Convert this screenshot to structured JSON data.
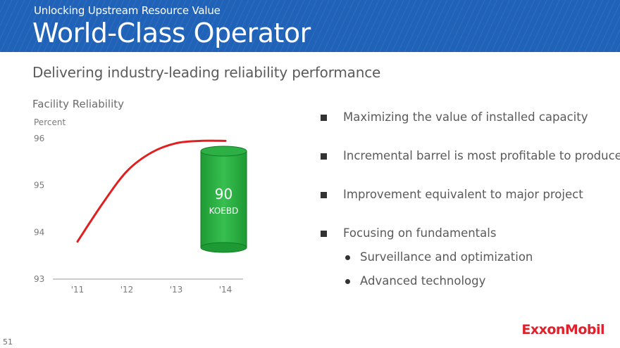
{
  "header": {
    "subtitle": "Unlocking Upstream Resource Value",
    "title": "World-Class Operator",
    "color": "#1f62b8"
  },
  "slide_subtitle": "Delivering industry-leading reliability performance",
  "chart_data": {
    "type": "line",
    "title": "Facility Reliability",
    "ylabel": "Percent",
    "xlabel": "",
    "categories": [
      "'11",
      "'12",
      "'13",
      "'14"
    ],
    "ylim": [
      93,
      96
    ],
    "yticks": [
      "96",
      "95",
      "94",
      "93"
    ],
    "series": [
      {
        "name": "Facility Reliability",
        "x": [
          2011,
          2011.5,
          2012,
          2012.5,
          2013,
          2013.5,
          2014
        ],
        "values": [
          93.8,
          94.6,
          95.3,
          95.7,
          95.9,
          95.95,
          95.95
        ],
        "color": "#e02020"
      }
    ],
    "annotation": {
      "value": "90",
      "unit": "KOEBD",
      "color": "#22aa3a"
    },
    "grid": false
  },
  "bullets": [
    {
      "text": "Maximizing the value of installed capacity"
    },
    {
      "text": "Incremental barrel is most profitable to produce"
    },
    {
      "text": "Improvement equivalent to major project"
    },
    {
      "text": "Focusing on fundamentals"
    }
  ],
  "sub_bullets": [
    {
      "text": "Surveillance and optimization"
    },
    {
      "text": "Advanced technology"
    }
  ],
  "logo": {
    "text": "ExxonMobil",
    "color": "#e0202a"
  },
  "page_number": "51"
}
